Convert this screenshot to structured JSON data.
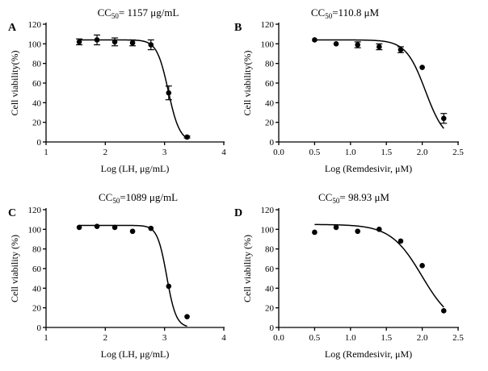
{
  "chart_data": [
    {
      "panel": "A",
      "type": "scatter",
      "title": "CC",
      "title_sub": "50",
      "title_rest": "= 1157 μg/mL",
      "xlabel": "Log (LH, μg/mL)",
      "ylabel": "Cell viability(%)",
      "xlim": [
        1,
        4
      ],
      "ylim": [
        0,
        120
      ],
      "xticks": [
        1,
        2,
        3,
        4
      ],
      "xtick_labels": [
        "1",
        "2",
        "3",
        "4"
      ],
      "yticks": [
        0,
        20,
        40,
        60,
        80,
        100,
        120
      ],
      "ytick_labels": [
        "0",
        "20",
        "40",
        "60",
        "80",
        "100",
        "120"
      ],
      "x": [
        1.56,
        1.86,
        2.16,
        2.46,
        2.77,
        3.07,
        3.38
      ],
      "y": [
        102,
        104,
        102,
        101,
        99,
        50,
        5
      ],
      "err": [
        3,
        5,
        4,
        3,
        5,
        7,
        1
      ],
      "fit": {
        "top": 104,
        "bottom": 0,
        "log_cc50": 3.063,
        "hill": 4.5
      }
    },
    {
      "panel": "B",
      "type": "scatter",
      "title": "CC",
      "title_sub": "50",
      "title_rest": "=110.8 μM",
      "xlabel": "Log (Remdesivir, μM)",
      "ylabel": "Cell viability(%)",
      "xlim": [
        0.0,
        2.5
      ],
      "ylim": [
        0,
        120
      ],
      "xticks": [
        0.0,
        0.5,
        1.0,
        1.5,
        2.0,
        2.5
      ],
      "xtick_labels": [
        "0.0",
        "0.5",
        "1.0",
        "1.5",
        "2.0",
        "2.5"
      ],
      "yticks": [
        0,
        20,
        40,
        60,
        80,
        100,
        120
      ],
      "ytick_labels": [
        "0",
        "20",
        "40",
        "60",
        "80",
        "100",
        "120"
      ],
      "x": [
        0.5,
        0.8,
        1.1,
        1.4,
        1.7,
        2.0,
        2.3
      ],
      "y": [
        104,
        100,
        99,
        97,
        94,
        76,
        24
      ],
      "err": [
        0,
        0,
        3,
        3,
        3,
        0,
        5
      ],
      "fit": {
        "top": 104,
        "bottom": 0,
        "log_cc50": 2.045,
        "hill": 3.2
      }
    },
    {
      "panel": "C",
      "type": "scatter",
      "title": "CC",
      "title_sub": "50",
      "title_rest": "=1089 μg/mL",
      "xlabel": "Log (LH, μg/mL)",
      "ylabel": "Cell viability (%)",
      "xlim": [
        1,
        4
      ],
      "ylim": [
        0,
        120
      ],
      "xticks": [
        1,
        2,
        3,
        4
      ],
      "xtick_labels": [
        "1",
        "2",
        "3",
        "4"
      ],
      "yticks": [
        0,
        20,
        40,
        60,
        80,
        100,
        120
      ],
      "ytick_labels": [
        "0",
        "20",
        "40",
        "60",
        "80",
        "100",
        "120"
      ],
      "x": [
        1.56,
        1.86,
        2.16,
        2.46,
        2.77,
        3.07,
        3.38
      ],
      "y": [
        102,
        103,
        102,
        98,
        101,
        42,
        11
      ],
      "err": [
        0,
        0,
        0,
        0,
        0,
        0,
        0
      ],
      "fit": {
        "top": 104,
        "bottom": 0,
        "log_cc50": 3.037,
        "hill": 5.5
      }
    },
    {
      "panel": "D",
      "type": "scatter",
      "title": "CC",
      "title_sub": "50",
      "title_rest": "= 98.93 μM",
      "xlabel": "Log (Remdesivir, μM)",
      "ylabel": "Cell viability (%)",
      "xlim": [
        0.0,
        2.5
      ],
      "ylim": [
        0,
        120
      ],
      "xticks": [
        0.0,
        0.5,
        1.0,
        1.5,
        2.0,
        2.5
      ],
      "xtick_labels": [
        "0.0",
        "0.5",
        "1.0",
        "1.5",
        "2.0",
        "2.5"
      ],
      "yticks": [
        0,
        20,
        40,
        60,
        80,
        100,
        120
      ],
      "ytick_labels": [
        "0",
        "20",
        "40",
        "60",
        "80",
        "100",
        "120"
      ],
      "x": [
        0.5,
        0.8,
        1.1,
        1.4,
        1.7,
        2.0,
        2.3
      ],
      "y": [
        97,
        102,
        98,
        100,
        88,
        63,
        17
      ],
      "err": [
        0,
        0,
        0,
        0,
        0,
        0,
        0
      ],
      "fit": {
        "top": 105,
        "bottom": 0,
        "log_cc50": 1.995,
        "hill": 2.0
      }
    }
  ]
}
